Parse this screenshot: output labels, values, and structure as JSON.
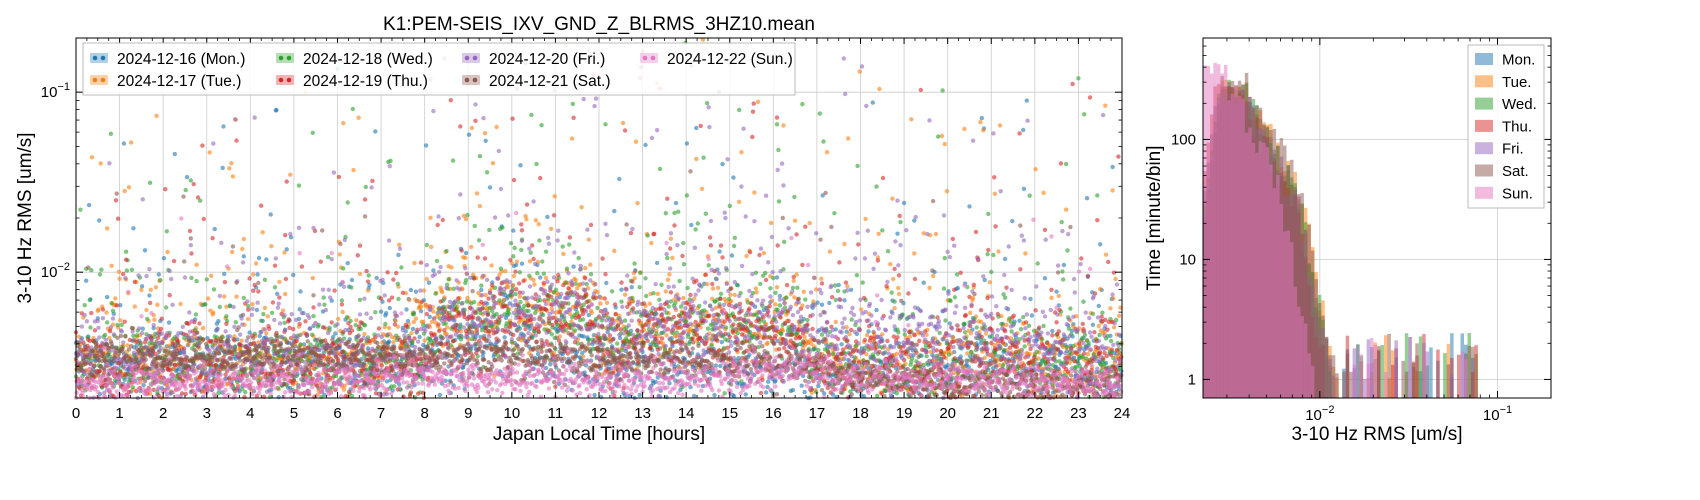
{
  "chart_data": [
    {
      "type": "scatter",
      "title": "K1:PEM-SEIS_IXV_GND_Z_BLRMS_3HZ10.mean",
      "xlabel": "Japan Local Time [hours]",
      "ylabel": "3-10 Hz RMS [um/s]",
      "xlim": [
        0,
        24
      ],
      "ylim": [
        0.002,
        0.2
      ],
      "yscale": "log",
      "grid": true,
      "legend_position": "top-left",
      "x_ticks": [
        "0",
        "1",
        "2",
        "3",
        "4",
        "5",
        "6",
        "7",
        "8",
        "9",
        "10",
        "11",
        "12",
        "13",
        "14",
        "15",
        "16",
        "17",
        "18",
        "19",
        "20",
        "21",
        "22",
        "23",
        "24"
      ],
      "y_ticks": [
        {
          "value": 0.1,
          "base": "10",
          "exp": "−1"
        },
        {
          "value": 0.01,
          "base": "10",
          "exp": "−2"
        }
      ],
      "series": [
        {
          "name": "2024-12-16 (Mon.)",
          "color": "#1f77b4",
          "baseline": [
            [
              0,
              0.0031
            ],
            [
              6,
              0.0031
            ],
            [
              8,
              0.003
            ],
            [
              10,
              0.0046
            ],
            [
              12,
              0.003
            ],
            [
              17,
              0.0028
            ],
            [
              20,
              0.003
            ],
            [
              24,
              0.003
            ]
          ]
        },
        {
          "name": "2024-12-17 (Tue.)",
          "color": "#ff7f0e",
          "baseline": [
            [
              0,
              0.0033
            ],
            [
              7,
              0.0033
            ],
            [
              8.5,
              0.006
            ],
            [
              11.8,
              0.0064
            ],
            [
              12.2,
              0.0036
            ],
            [
              13,
              0.005
            ],
            [
              16.5,
              0.005
            ],
            [
              17,
              0.0032
            ],
            [
              24,
              0.0033
            ]
          ]
        },
        {
          "name": "2024-12-18 (Wed.)",
          "color": "#2ca02c",
          "baseline": [
            [
              0,
              0.0032
            ],
            [
              8,
              0.0032
            ],
            [
              8.5,
              0.0058
            ],
            [
              11.8,
              0.006
            ],
            [
              12.2,
              0.0034
            ],
            [
              13,
              0.0052
            ],
            [
              16.5,
              0.005
            ],
            [
              17,
              0.003
            ],
            [
              24,
              0.0031
            ]
          ]
        },
        {
          "name": "2024-12-19 (Thu.)",
          "color": "#d62728",
          "baseline": [
            [
              0,
              0.003
            ],
            [
              8,
              0.003
            ],
            [
              8.5,
              0.0052
            ],
            [
              11.8,
              0.0055
            ],
            [
              12.2,
              0.0032
            ],
            [
              13,
              0.0048
            ],
            [
              16.5,
              0.0046
            ],
            [
              17,
              0.0031
            ],
            [
              20,
              0.003
            ],
            [
              21,
              0.0036
            ],
            [
              24,
              0.003
            ]
          ]
        },
        {
          "name": "2024-12-20 (Fri.)",
          "color": "#9467bd",
          "baseline": [
            [
              0,
              0.0032
            ],
            [
              8,
              0.0032
            ],
            [
              8.5,
              0.006
            ],
            [
              11.8,
              0.0066
            ],
            [
              12.2,
              0.0034
            ],
            [
              13,
              0.0055
            ],
            [
              16.5,
              0.0052
            ],
            [
              17,
              0.0042
            ],
            [
              20,
              0.0042
            ],
            [
              21,
              0.004
            ],
            [
              24,
              0.0034
            ]
          ]
        },
        {
          "name": "2024-12-21 (Sat.)",
          "color": "#8c564b",
          "baseline": [
            [
              0,
              0.0034
            ],
            [
              8,
              0.0034
            ],
            [
              12,
              0.0033
            ],
            [
              17,
              0.003
            ],
            [
              17.8,
              0.0026
            ],
            [
              20,
              0.0024
            ],
            [
              24,
              0.0022
            ]
          ]
        },
        {
          "name": "2024-12-22 (Sun.)",
          "color": "#e377c2",
          "baseline": [
            [
              0,
              0.0023
            ],
            [
              8,
              0.0026
            ],
            [
              12,
              0.0025
            ],
            [
              16,
              0.0028
            ],
            [
              24,
              0.0023
            ]
          ]
        }
      ]
    },
    {
      "type": "histogram",
      "xlabel": "3-10 Hz RMS [um/s]",
      "ylabel": "Time [minute/bin]",
      "xscale": "log",
      "yscale": "log",
      "xlim": [
        0.0022,
        0.2
      ],
      "ylim": [
        0.7,
        700
      ],
      "grid": true,
      "legend_position": "top-right",
      "x_ticks": [
        {
          "value": 0.01,
          "base": "10",
          "exp": "−2"
        },
        {
          "value": 0.1,
          "base": "10",
          "exp": "−1"
        }
      ],
      "y_ticks": [
        {
          "value": 1,
          "label": "1"
        },
        {
          "value": 10,
          "label": "10"
        },
        {
          "value": 100,
          "label": "100"
        }
      ],
      "series": [
        {
          "name": "Mon.",
          "color": "#1f77b4",
          "peak": 0.0032,
          "peak_count": 280
        },
        {
          "name": "Tue.",
          "color": "#ff7f0e",
          "peak": 0.0034,
          "peak_count": 320
        },
        {
          "name": "Wed.",
          "color": "#2ca02c",
          "peak": 0.0033,
          "peak_count": 300
        },
        {
          "name": "Thu.",
          "color": "#d62728",
          "peak": 0.0031,
          "peak_count": 280
        },
        {
          "name": "Fri.",
          "color": "#9467bd",
          "peak": 0.0033,
          "peak_count": 260
        },
        {
          "name": "Sat.",
          "color": "#8c564b",
          "peak": 0.0034,
          "peak_count": 350
        },
        {
          "name": "Sun.",
          "color": "#e377c2",
          "peak": 0.0025,
          "peak_count": 430
        }
      ]
    }
  ]
}
